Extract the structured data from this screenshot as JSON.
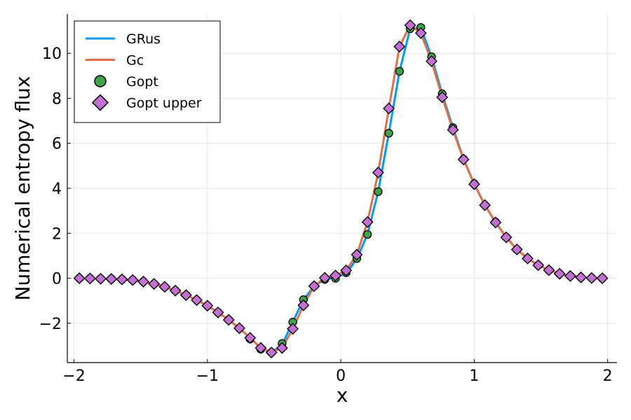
{
  "chart_data": {
    "type": "line",
    "title": "",
    "xlabel": "x",
    "ylabel": "Numerical entropy flux",
    "xlim": [
      -2.05,
      2.07
    ],
    "ylim": [
      -3.75,
      11.75
    ],
    "x_ticks": [
      -2,
      -1,
      0,
      1,
      2
    ],
    "x_tick_labels": [
      "−2",
      "−1",
      "0",
      "1",
      "2"
    ],
    "y_ticks": [
      -2,
      0,
      2,
      4,
      6,
      8,
      10
    ],
    "y_tick_labels": [
      "−2",
      "0",
      "2",
      "4",
      "6",
      "8",
      "10"
    ],
    "grid": true,
    "legend_position": "top-left",
    "x": [
      -1.96,
      -1.88,
      -1.8,
      -1.72,
      -1.64,
      -1.56,
      -1.48,
      -1.4,
      -1.32,
      -1.24,
      -1.16,
      -1.08,
      -1.0,
      -0.92,
      -0.84,
      -0.76,
      -0.68,
      -0.6,
      -0.52,
      -0.44,
      -0.36,
      -0.28,
      -0.2,
      -0.12,
      -0.04,
      0.04,
      0.12,
      0.2,
      0.28,
      0.36,
      0.44,
      0.52,
      0.6,
      0.68,
      0.76,
      0.84,
      0.92,
      1.0,
      1.08,
      1.16,
      1.24,
      1.32,
      1.4,
      1.48,
      1.56,
      1.64,
      1.72,
      1.8,
      1.88,
      1.96
    ],
    "series": [
      {
        "name": "GRus",
        "kind": "line",
        "color": "#009af9",
        "values": [
          0.0,
          -0.01,
          -0.02,
          -0.03,
          -0.05,
          -0.08,
          -0.15,
          -0.25,
          -0.38,
          -0.55,
          -0.75,
          -0.97,
          -1.22,
          -1.52,
          -1.85,
          -2.22,
          -2.65,
          -3.1,
          -3.3,
          -2.95,
          -1.95,
          -0.95,
          -0.35,
          -0.05,
          0.02,
          0.22,
          0.85,
          1.95,
          3.85,
          6.45,
          9.2,
          11.1,
          11.15,
          9.85,
          8.2,
          6.7,
          5.3,
          4.2,
          3.25,
          2.5,
          1.82,
          1.28,
          0.88,
          0.58,
          0.36,
          0.2,
          0.1,
          0.04,
          0.01,
          0.0
        ]
      },
      {
        "name": "Gc",
        "kind": "line",
        "color": "#e26f46",
        "values": [
          0.0,
          -0.01,
          -0.02,
          -0.03,
          -0.05,
          -0.08,
          -0.15,
          -0.25,
          -0.38,
          -0.55,
          -0.75,
          -0.97,
          -1.22,
          -1.52,
          -1.85,
          -2.22,
          -2.65,
          -3.1,
          -3.28,
          -3.1,
          -2.25,
          -1.2,
          -0.35,
          0.02,
          0.12,
          0.35,
          1.05,
          2.5,
          4.7,
          7.55,
          10.3,
          11.25,
          10.9,
          9.65,
          8.05,
          6.6,
          5.28,
          4.18,
          3.25,
          2.48,
          1.82,
          1.28,
          0.88,
          0.58,
          0.36,
          0.2,
          0.1,
          0.04,
          0.01,
          0.0
        ]
      },
      {
        "name": "Gopt",
        "kind": "scatter-circle",
        "color": "#3da44d",
        "values": [
          0.0,
          -0.01,
          -0.02,
          -0.03,
          -0.05,
          -0.08,
          -0.15,
          -0.25,
          -0.38,
          -0.55,
          -0.75,
          -0.97,
          -1.22,
          -1.52,
          -1.85,
          -2.22,
          -2.7,
          -3.15,
          -3.3,
          -2.9,
          -1.95,
          -0.95,
          -0.35,
          -0.05,
          0.0,
          0.25,
          0.88,
          1.95,
          3.85,
          6.45,
          9.2,
          11.1,
          11.15,
          9.85,
          8.2,
          6.7,
          5.3,
          4.2,
          3.25,
          2.5,
          1.82,
          1.28,
          0.88,
          0.58,
          0.36,
          0.2,
          0.1,
          0.04,
          0.01,
          0.0
        ]
      },
      {
        "name": "Gopt upper",
        "kind": "scatter-diamond",
        "color": "#c271d2",
        "values": [
          0.0,
          -0.01,
          -0.02,
          -0.03,
          -0.05,
          -0.08,
          -0.15,
          -0.25,
          -0.38,
          -0.55,
          -0.75,
          -0.97,
          -1.22,
          -1.52,
          -1.85,
          -2.22,
          -2.65,
          -3.1,
          -3.3,
          -3.1,
          -2.25,
          -1.2,
          -0.35,
          0.02,
          0.12,
          0.35,
          1.05,
          2.5,
          4.7,
          7.55,
          10.3,
          11.25,
          10.9,
          9.65,
          8.05,
          6.6,
          5.28,
          4.18,
          3.25,
          2.48,
          1.82,
          1.28,
          0.88,
          0.58,
          0.36,
          0.2,
          0.1,
          0.04,
          0.01,
          0.0
        ]
      }
    ]
  }
}
